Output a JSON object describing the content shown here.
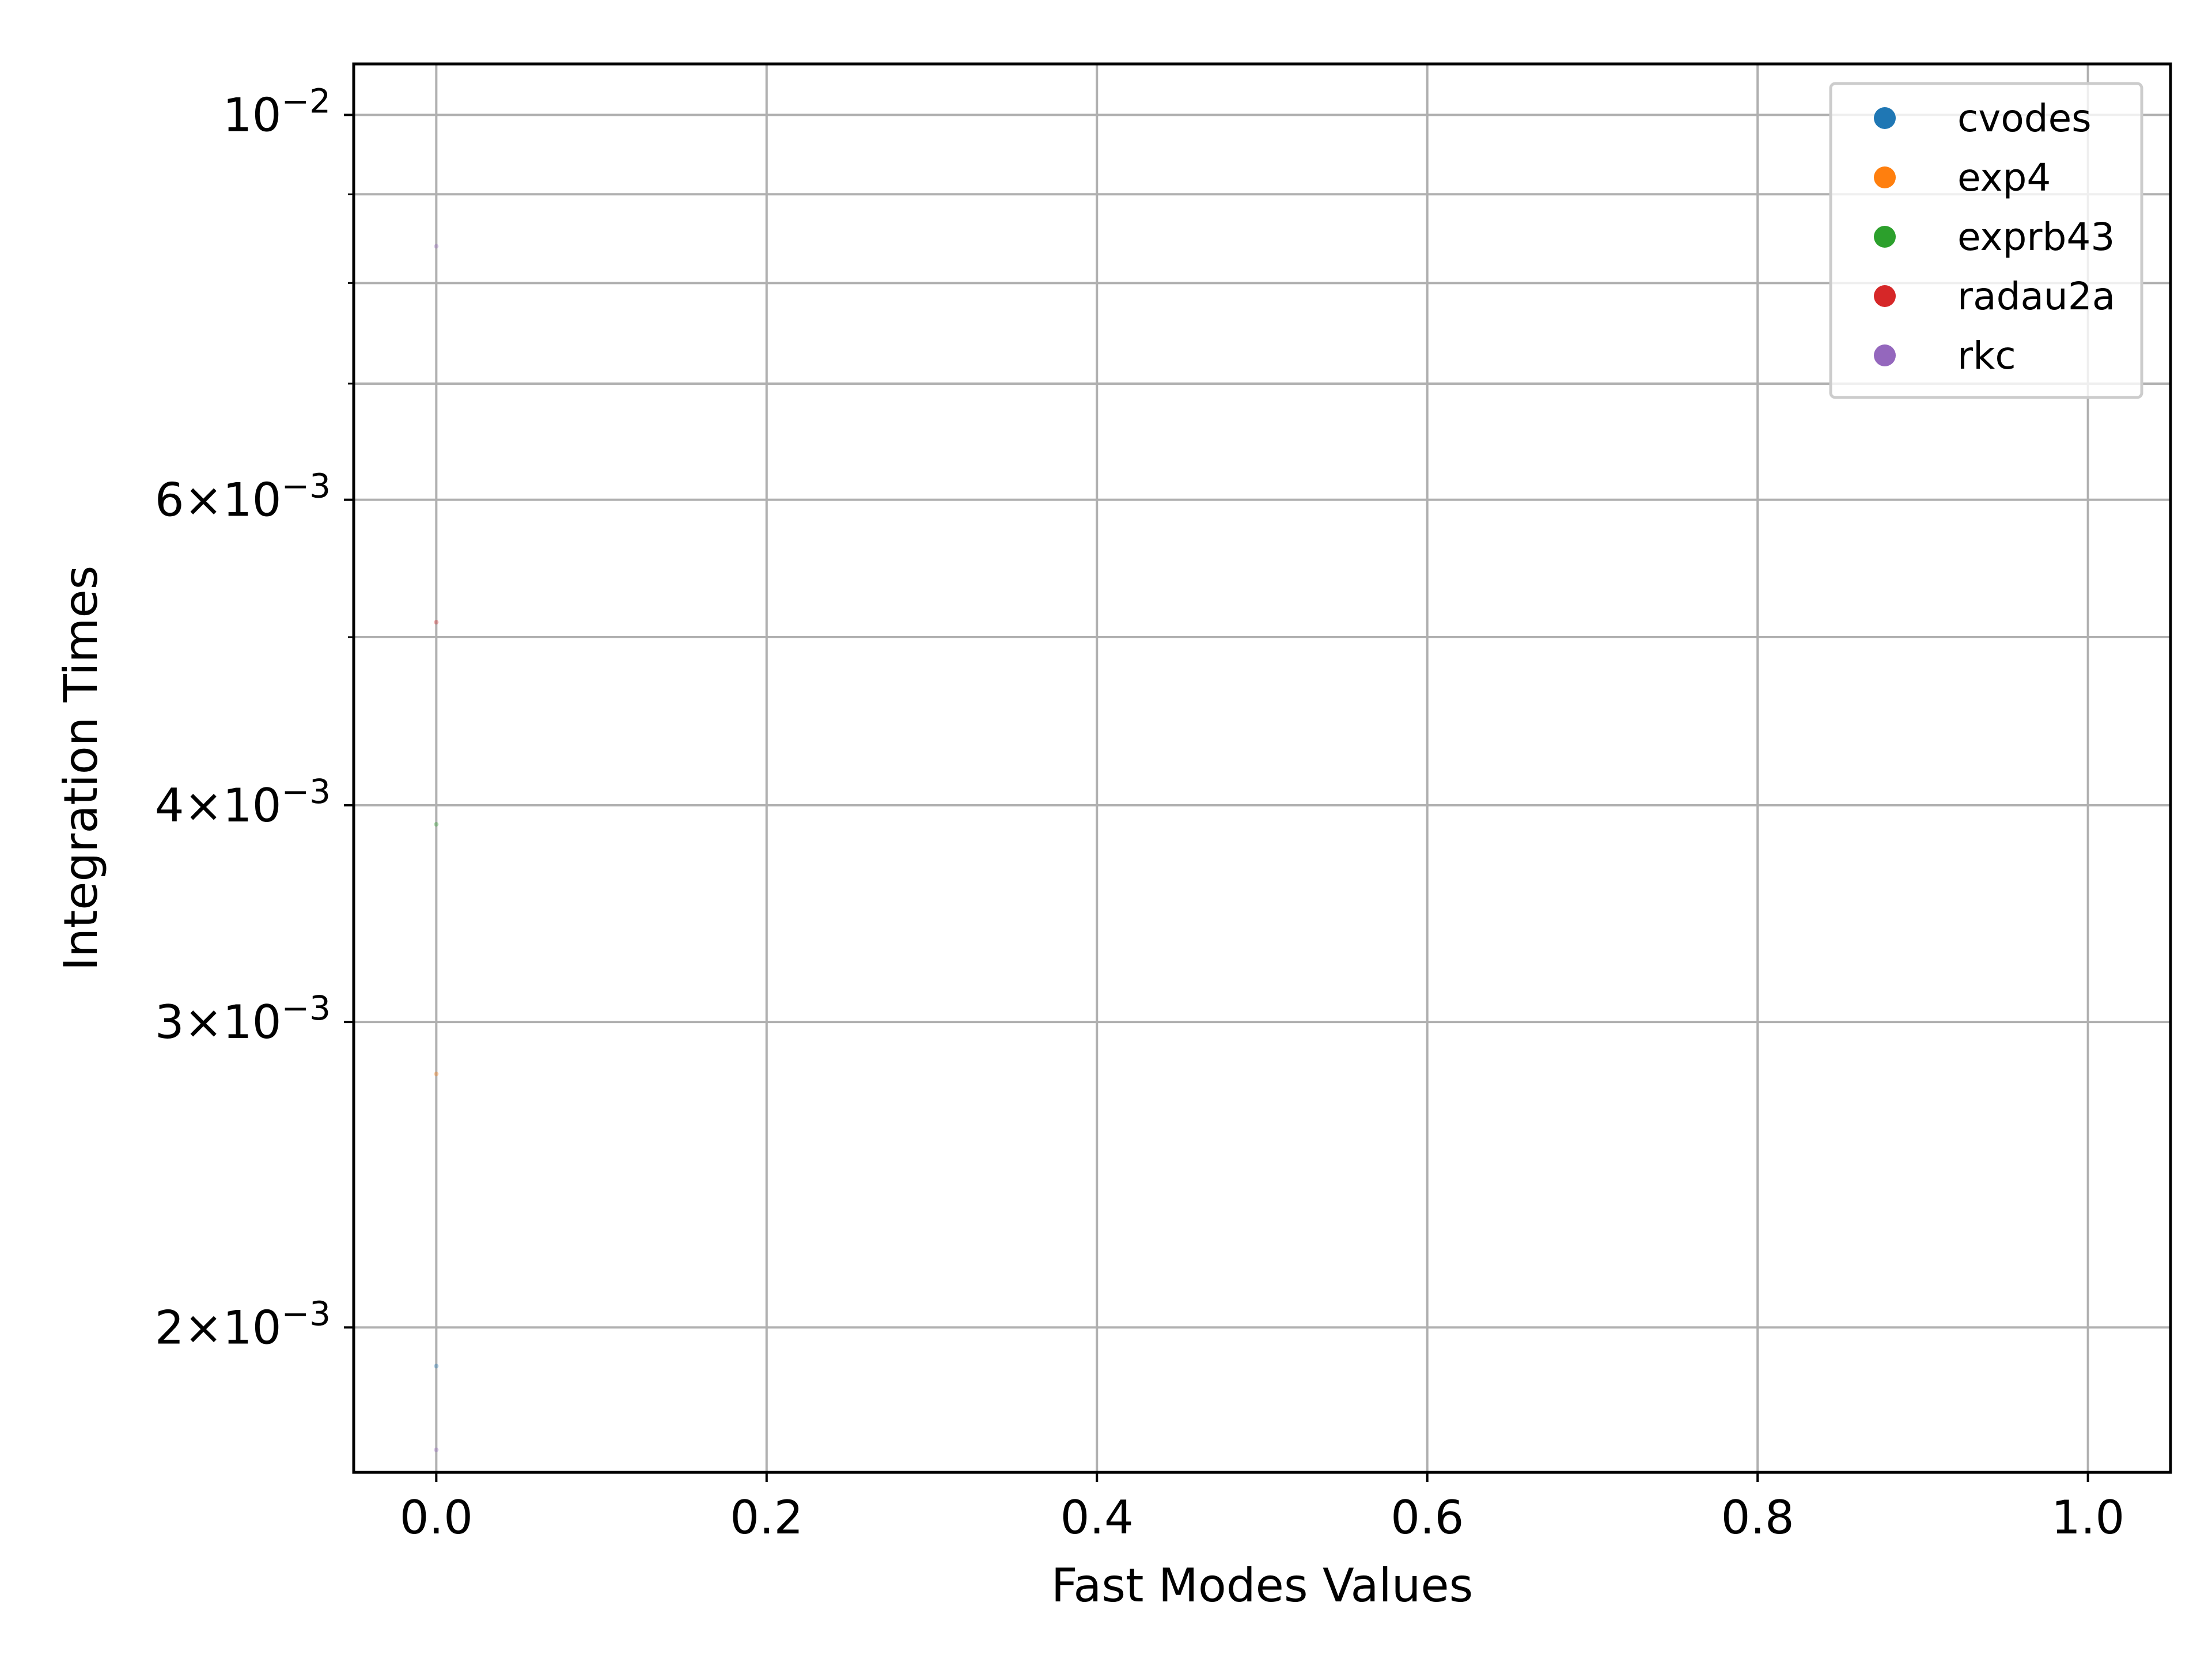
{
  "chart_data": {
    "type": "scatter",
    "xlabel": "Fast Modes Values",
    "ylabel": "Integration Times",
    "xlim": [
      -0.05,
      1.05
    ],
    "ylim": [
      0.00165,
      0.0107
    ],
    "yscale": "log",
    "grid": true,
    "legend_position": "top-right",
    "x_ticks": [
      "0.0",
      "0.2",
      "0.4",
      "0.6",
      "0.8",
      "1.0"
    ],
    "x_tick_values": [
      0.0,
      0.2,
      0.4,
      0.6,
      0.8,
      1.0
    ],
    "y_ticks": [
      {
        "value": 0.01,
        "mantissa": "",
        "base": "10",
        "exponent": "−2"
      },
      {
        "value": 0.006,
        "mantissa": "6",
        "base": "10",
        "exponent": "−3"
      },
      {
        "value": 0.004,
        "mantissa": "4",
        "base": "10",
        "exponent": "−3"
      },
      {
        "value": 0.003,
        "mantissa": "3",
        "base": "10",
        "exponent": "−3"
      },
      {
        "value": 0.002,
        "mantissa": "2",
        "base": "10",
        "exponent": "−3"
      }
    ],
    "y_grid_values": [
      0.01,
      0.009,
      0.008,
      0.007,
      0.006,
      0.005,
      0.004,
      0.003,
      0.002
    ],
    "series": [
      {
        "name": "cvodes",
        "color": "#1f77b4",
        "points": [
          [
            0.0,
            0.0019
          ]
        ]
      },
      {
        "name": "exp4",
        "color": "#ff7f0e",
        "points": [
          [
            0.0,
            0.0028
          ]
        ]
      },
      {
        "name": "exprb43",
        "color": "#2ca02c",
        "points": [
          [
            0.0,
            0.0039
          ]
        ]
      },
      {
        "name": "radau2a",
        "color": "#d62728",
        "points": [
          [
            0.0,
            0.0051
          ]
        ]
      },
      {
        "name": "rkc",
        "color": "#9467bd",
        "points": [
          [
            0.0,
            0.0084
          ],
          [
            0.0,
            0.0017
          ]
        ]
      }
    ]
  }
}
